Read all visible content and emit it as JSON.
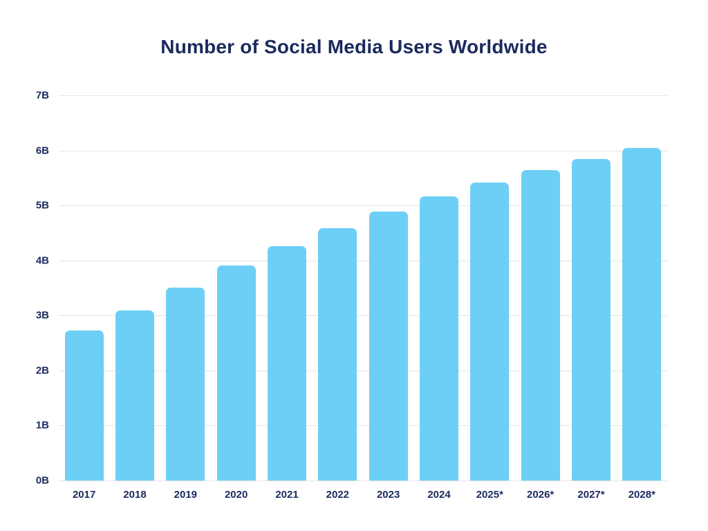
{
  "page": {
    "background_color": "#ffffff"
  },
  "chart_data": {
    "type": "bar",
    "title": "Number of Social Media Users Worldwide",
    "categories": [
      "2017",
      "2018",
      "2019",
      "2020",
      "2021",
      "2022",
      "2023",
      "2024",
      "2025*",
      "2026*",
      "2027*",
      "2028*"
    ],
    "values": [
      2.73,
      3.09,
      3.5,
      3.91,
      4.26,
      4.59,
      4.89,
      5.17,
      5.42,
      5.64,
      5.85,
      6.04
    ],
    "unit": "B",
    "xlabel": "",
    "ylabel": "",
    "ylim": [
      0,
      7
    ],
    "ytick_interval": 1,
    "ytick_labels": [
      "0B",
      "1B",
      "2B",
      "3B",
      "4B",
      "5B",
      "6B",
      "7B"
    ],
    "grid": true,
    "legend": "none",
    "bar_color": "#6DCFF6",
    "title_color": "#1B2A5E",
    "label_color": "#1B2A5E",
    "gridline_color": "#E4E4E6"
  }
}
